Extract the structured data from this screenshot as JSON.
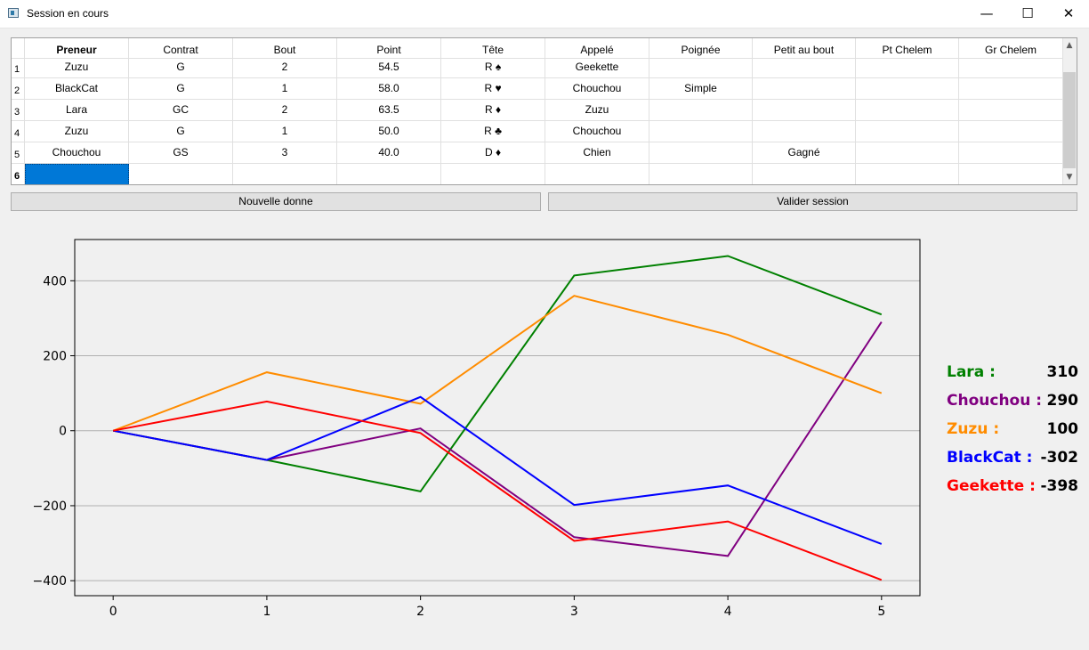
{
  "window": {
    "title": "Session en cours"
  },
  "table": {
    "headers": [
      "Preneur",
      "Contrat",
      "Bout",
      "Point",
      "Tête",
      "Appelé",
      "Poignée",
      "Petit au bout",
      "Pt Chelem",
      "Gr Chelem"
    ],
    "row_numbers": [
      "1",
      "2",
      "3",
      "4",
      "5",
      "6"
    ],
    "rows": [
      [
        "Zuzu",
        "G",
        "2",
        "54.5",
        "R ♠",
        "Geekette",
        "",
        "",
        "",
        ""
      ],
      [
        "BlackCat",
        "G",
        "1",
        "58.0",
        "R ♥",
        "Chouchou",
        "Simple",
        "",
        "",
        ""
      ],
      [
        "Lara",
        "GC",
        "2",
        "63.5",
        "R ♦",
        "Zuzu",
        "",
        "",
        "",
        ""
      ],
      [
        "Zuzu",
        "G",
        "1",
        "50.0",
        "R ♣",
        "Chouchou",
        "",
        "",
        "",
        ""
      ],
      [
        "Chouchou",
        "GS",
        "3",
        "40.0",
        "D ♦",
        "Chien",
        "",
        "Gagné",
        "",
        ""
      ],
      [
        "",
        "",
        "",
        "",
        "",
        "",
        "",
        "",
        "",
        ""
      ]
    ]
  },
  "buttons": {
    "new_deal": "Nouvelle donne",
    "validate": "Valider session"
  },
  "scores": [
    {
      "name": "Lara :",
      "value": "310",
      "color": "#008000"
    },
    {
      "name": "Chouchou :",
      "value": "290",
      "color": "#800080"
    },
    {
      "name": "Zuzu :",
      "value": "100",
      "color": "#ff8c00"
    },
    {
      "name": "BlackCat :",
      "value": "-302",
      "color": "#0000ff"
    },
    {
      "name": "Geekette :",
      "value": "-398",
      "color": "#ff0000"
    }
  ],
  "chart_data": {
    "type": "line",
    "x": [
      0,
      1,
      2,
      3,
      4,
      5
    ],
    "xticks": [
      "0",
      "1",
      "2",
      "3",
      "4",
      "5"
    ],
    "yticks": [
      "400",
      "200",
      "0",
      "−200",
      "−400"
    ],
    "ytick_values": [
      400,
      200,
      0,
      -200,
      -400
    ],
    "xlim": [
      -0.25,
      5.25
    ],
    "ylim": [
      -440,
      510
    ],
    "grid": "y",
    "series": [
      {
        "name": "Lara",
        "color": "#008000",
        "values": [
          0,
          -78,
          -162,
          414,
          466,
          310
        ]
      },
      {
        "name": "Chouchou",
        "color": "#800080",
        "values": [
          0,
          -78,
          6,
          -284,
          -334,
          290
        ]
      },
      {
        "name": "Zuzu",
        "color": "#ff8c00",
        "values": [
          0,
          156,
          72,
          360,
          256,
          100
        ]
      },
      {
        "name": "BlackCat",
        "color": "#0000ff",
        "values": [
          0,
          -78,
          90,
          -198,
          -146,
          -302
        ]
      },
      {
        "name": "Geekette",
        "color": "#ff0000",
        "values": [
          0,
          78,
          -6,
          -294,
          -242,
          -398
        ]
      }
    ]
  }
}
